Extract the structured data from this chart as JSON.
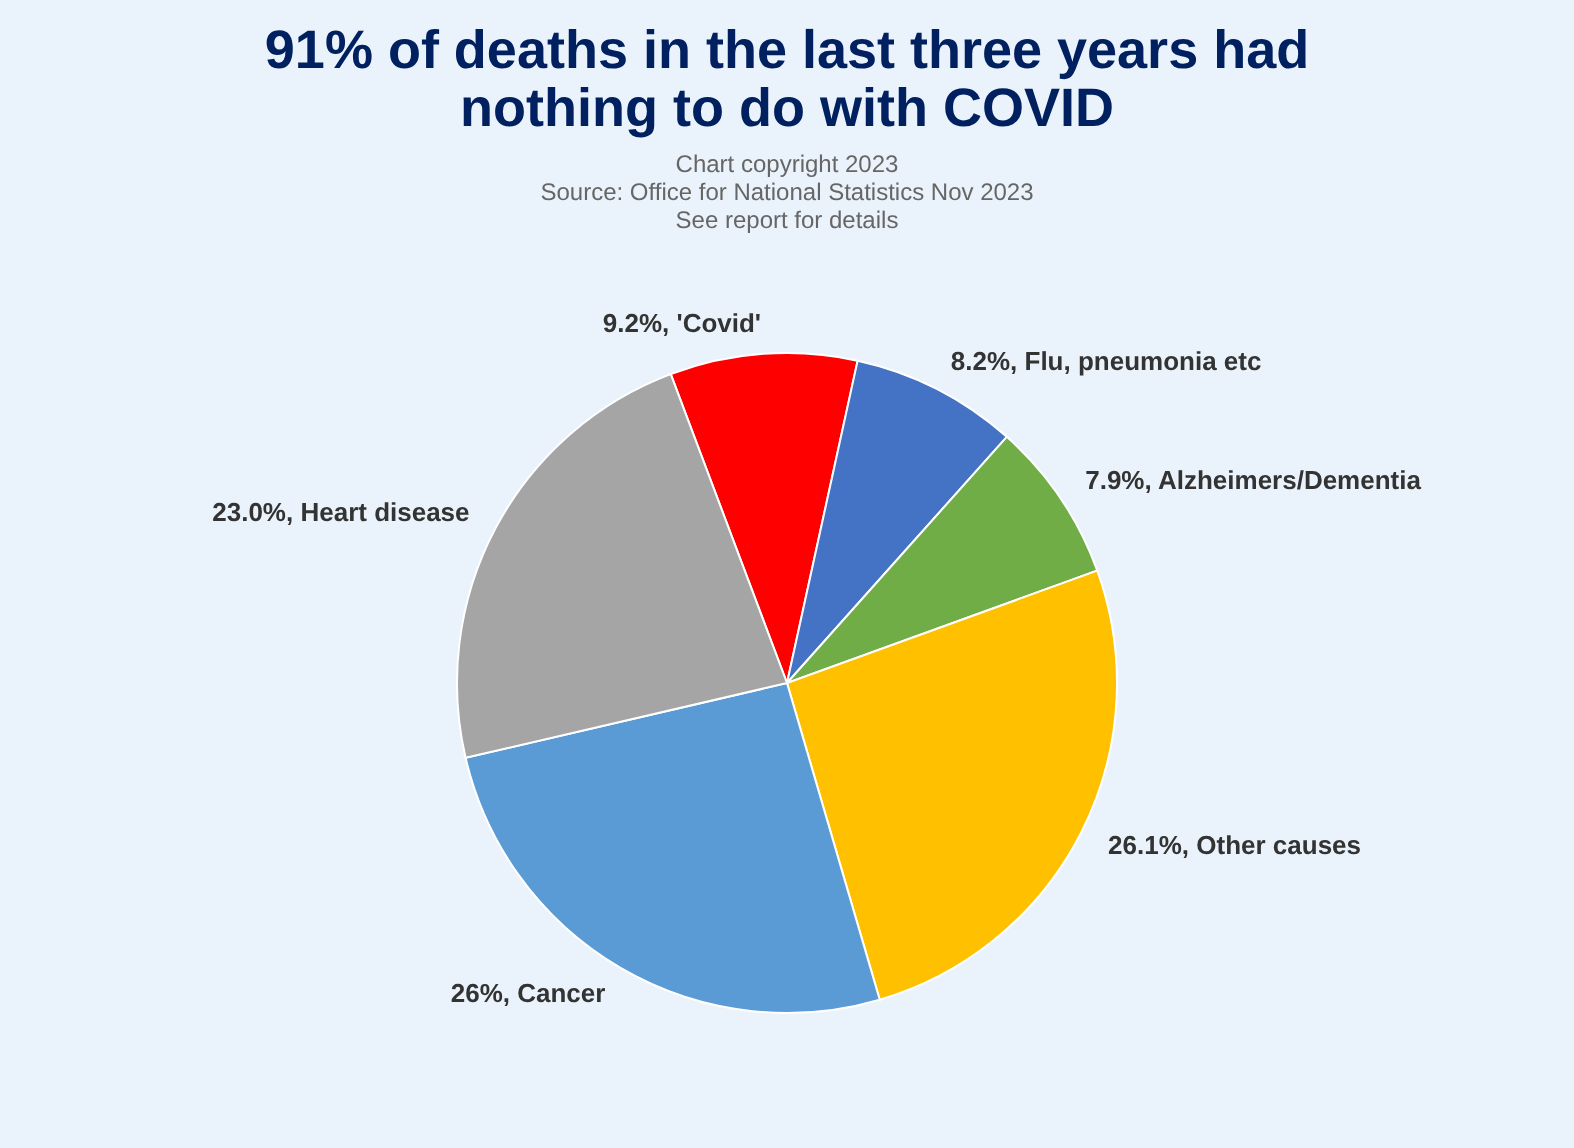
{
  "chart_data": {
    "type": "pie",
    "title": "91% of deaths in the last three years had nothing to do with COVID",
    "annotations": [
      "Chart copyright 2023",
      "Source: Office for National Statistics Nov 2023",
      "See report for details"
    ],
    "categories": [
      "'Covid'",
      "Flu, pneumonia etc",
      "Alzheimers/Dementia",
      "Other causes",
      "Cancer",
      "Heart disease"
    ],
    "values": [
      9.2,
      8.2,
      7.9,
      26.1,
      26,
      23.0
    ],
    "value_labels": [
      "9.2%",
      "8.2%",
      "7.9%",
      "26.1%",
      "26%",
      "23.0%"
    ],
    "colors": [
      "#ff0000",
      "#4472c4",
      "#70ad47",
      "#ffc000",
      "#5b9bd5",
      "#a5a5a5"
    ],
    "legend": false
  }
}
